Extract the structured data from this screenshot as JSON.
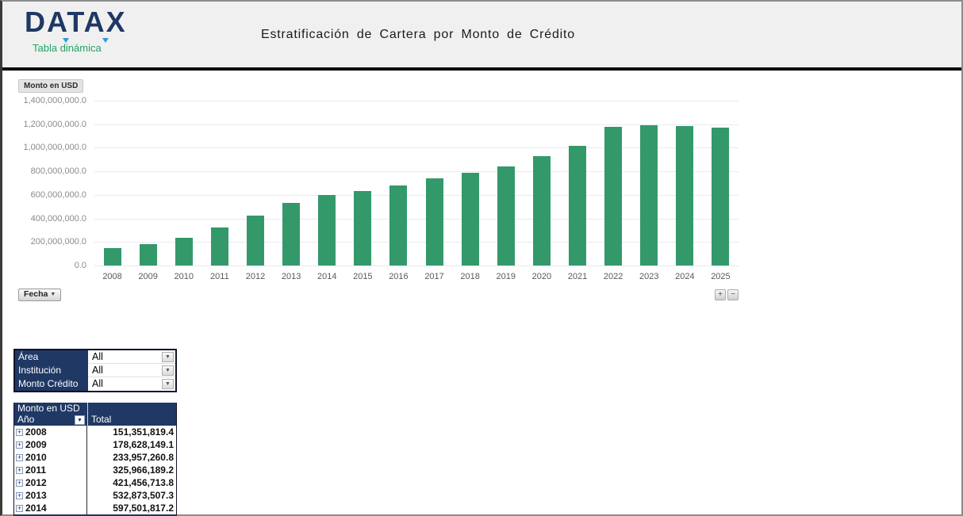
{
  "header": {
    "logo_text": "DATAX",
    "logo_subtitle": "Tabla dinámica",
    "title": "Estratificación de Cartera por Monto de Crédito"
  },
  "chart": {
    "field_button": "Monto en USD",
    "axis_button": "Fecha",
    "expand_button": "+",
    "collapse_button": "−"
  },
  "icons": {
    "dropdown": "▼",
    "expand": "+"
  },
  "chart_data": {
    "type": "bar",
    "title": "Estratificación de Cartera por Monto de Crédito",
    "xlabel": "Fecha",
    "ylabel": "Monto en USD",
    "ylim": [
      0,
      1400000000
    ],
    "grid": true,
    "legend": "none",
    "bar_color": "#33996b",
    "categories": [
      "2008",
      "2009",
      "2010",
      "2011",
      "2012",
      "2013",
      "2014",
      "2015",
      "2016",
      "2017",
      "2018",
      "2019",
      "2020",
      "2021",
      "2022",
      "2023",
      "2024",
      "2025"
    ],
    "values": [
      151351819.4,
      178628149.1,
      233957260.8,
      325966189.2,
      421456713.8,
      532873507.3,
      597501817.2,
      630000000,
      680000000,
      740000000,
      785000000,
      840000000,
      932000000,
      1018000000,
      1175000000,
      1190000000,
      1183000000,
      1171000000
    ],
    "y_ticks": [
      {
        "label": "1,400,000,000.0",
        "value": 1400000000
      },
      {
        "label": "1,200,000,000.0",
        "value": 1200000000
      },
      {
        "label": "1,000,000,000.0",
        "value": 1000000000
      },
      {
        "label": "800,000,000.0",
        "value": 800000000
      },
      {
        "label": "600,000,000.0",
        "value": 600000000
      },
      {
        "label": "400,000,000.0",
        "value": 400000000
      },
      {
        "label": "200,000,000.0",
        "value": 200000000
      },
      {
        "label": "0.0",
        "value": 0
      }
    ]
  },
  "filters": {
    "rows": [
      {
        "label": "Área",
        "value": "All"
      },
      {
        "label": "Institución",
        "value": "All"
      },
      {
        "label": "Monto Crédito",
        "value": "All"
      }
    ]
  },
  "pivot": {
    "title": "Monto en USD",
    "row_header": "Año",
    "value_header": "Total",
    "rows": [
      {
        "year": "2008",
        "total": "151,351,819.4"
      },
      {
        "year": "2009",
        "total": "178,628,149.1"
      },
      {
        "year": "2010",
        "total": "233,957,260.8"
      },
      {
        "year": "2011",
        "total": "325,966,189.2"
      },
      {
        "year": "2012",
        "total": "421,456,713.8"
      },
      {
        "year": "2013",
        "total": "532,873,507.3"
      },
      {
        "year": "2014",
        "total": "597,501,817.2"
      }
    ]
  }
}
